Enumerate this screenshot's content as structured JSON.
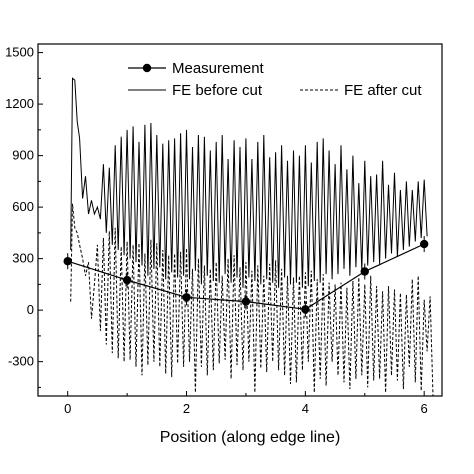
{
  "chart_data": {
    "type": "line",
    "title": "",
    "xlabel": "Position (along edge line)",
    "ylabel": "",
    "xlim": [
      -0.5,
      6.3
    ],
    "ylim": [
      -500,
      1550
    ],
    "x_ticks": [
      "0",
      "2",
      "4",
      "6"
    ],
    "y_ticks": [
      "-300",
      "0",
      "300",
      "600",
      "900",
      "1200",
      "1500"
    ],
    "x_tick_values": [
      0,
      2,
      4,
      6
    ],
    "y_tick_values": [
      -300,
      0,
      300,
      600,
      900,
      1200,
      1500
    ],
    "grid": false,
    "legend": "top-center",
    "series": [
      {
        "name": "Measurement",
        "style": "line-with-filled-circles",
        "color": "#000000",
        "x": [
          0,
          1,
          2,
          3,
          4,
          5,
          6
        ],
        "y": [
          285,
          175,
          75,
          50,
          5,
          225,
          385
        ]
      },
      {
        "name": "FE before cut",
        "style": "solid",
        "color": "#000000",
        "x": [
          0.05,
          0.08,
          0.12,
          0.16,
          0.2,
          0.25,
          0.3,
          0.35,
          0.4,
          0.45,
          0.5,
          0.55,
          0.6,
          0.65,
          0.7,
          0.75,
          0.8,
          0.85,
          0.9,
          0.95,
          1.0,
          1.05,
          1.1,
          1.15,
          1.2,
          1.25,
          1.3,
          1.35,
          1.4,
          1.45,
          1.5,
          1.55,
          1.6,
          1.65,
          1.7,
          1.75,
          1.8,
          1.85,
          1.9,
          1.95,
          2.0,
          2.05,
          2.1,
          2.15,
          2.2,
          2.25,
          2.3,
          2.35,
          2.4,
          2.45,
          2.5,
          2.55,
          2.6,
          2.65,
          2.7,
          2.75,
          2.8,
          2.85,
          2.9,
          2.95,
          3.0,
          3.05,
          3.1,
          3.15,
          3.2,
          3.25,
          3.3,
          3.35,
          3.4,
          3.45,
          3.5,
          3.55,
          3.6,
          3.65,
          3.7,
          3.75,
          3.8,
          3.85,
          3.9,
          3.95,
          4.0,
          4.05,
          4.1,
          4.15,
          4.2,
          4.25,
          4.3,
          4.35,
          4.4,
          4.45,
          4.5,
          4.55,
          4.6,
          4.65,
          4.7,
          4.75,
          4.8,
          4.85,
          4.9,
          4.95,
          5.0,
          5.05,
          5.1,
          5.15,
          5.2,
          5.25,
          5.3,
          5.35,
          5.4,
          5.45,
          5.5,
          5.55,
          5.6,
          5.65,
          5.7,
          5.75,
          5.8,
          5.85,
          5.9,
          5.95,
          6.0,
          6.05
        ],
        "y": [
          350,
          1350,
          1340,
          1100,
          1000,
          650,
          780,
          560,
          640,
          560,
          600,
          530,
          850,
          450,
          830,
          380,
          960,
          350,
          1010,
          320,
          1050,
          300,
          1070,
          280,
          980,
          260,
          1080,
          200,
          1090,
          240,
          1020,
          250,
          970,
          180,
          990,
          220,
          1000,
          190,
          1030,
          200,
          1050,
          180,
          950,
          230,
          1020,
          150,
          1010,
          200,
          930,
          170,
          980,
          160,
          1020,
          210,
          880,
          160,
          990,
          190,
          950,
          130,
          1000,
          190,
          880,
          170,
          980,
          150,
          1020,
          180,
          890,
          160,
          920,
          130,
          960,
          190,
          870,
          150,
          930,
          160,
          900,
          130,
          960,
          140,
          860,
          170,
          980,
          160,
          1000,
          210,
          930,
          180,
          850,
          210,
          960,
          240,
          820,
          200,
          900,
          250,
          740,
          230,
          870,
          260,
          780,
          280,
          790,
          270,
          870,
          300,
          730,
          330,
          800,
          310,
          700,
          350,
          750,
          370,
          700,
          400,
          750,
          420,
          760,
          430
        ]
      },
      {
        "name": "FE after cut",
        "style": "dashed",
        "color": "#000000",
        "x": [
          0.05,
          0.08,
          0.12,
          0.16,
          0.2,
          0.25,
          0.3,
          0.35,
          0.4,
          0.45,
          0.5,
          0.55,
          0.6,
          0.65,
          0.7,
          0.75,
          0.8,
          0.85,
          0.9,
          0.95,
          1.0,
          1.05,
          1.1,
          1.15,
          1.2,
          1.25,
          1.3,
          1.35,
          1.4,
          1.45,
          1.5,
          1.55,
          1.6,
          1.65,
          1.7,
          1.75,
          1.8,
          1.85,
          1.9,
          1.95,
          2.0,
          2.05,
          2.1,
          2.15,
          2.2,
          2.25,
          2.3,
          2.35,
          2.4,
          2.45,
          2.5,
          2.55,
          2.6,
          2.65,
          2.7,
          2.75,
          2.8,
          2.85,
          2.9,
          2.95,
          3.0,
          3.05,
          3.1,
          3.15,
          3.2,
          3.25,
          3.3,
          3.35,
          3.4,
          3.45,
          3.5,
          3.55,
          3.6,
          3.65,
          3.7,
          3.75,
          3.8,
          3.85,
          3.9,
          3.95,
          4.0,
          4.05,
          4.1,
          4.15,
          4.2,
          4.25,
          4.3,
          4.35,
          4.4,
          4.45,
          4.5,
          4.55,
          4.6,
          4.65,
          4.7,
          4.75,
          4.8,
          4.85,
          4.9,
          4.95,
          5.0,
          5.05,
          5.1,
          5.15,
          5.2,
          5.25,
          5.3,
          5.35,
          5.4,
          5.45,
          5.5,
          5.55,
          5.6,
          5.65,
          5.7,
          5.75,
          5.8,
          5.85,
          5.9,
          5.95,
          6.0,
          6.05,
          6.1,
          6.15
        ],
        "y": [
          50,
          620,
          480,
          450,
          380,
          300,
          200,
          280,
          -50,
          150,
          380,
          -120,
          420,
          -200,
          460,
          -250,
          480,
          -280,
          370,
          -300,
          400,
          -290,
          380,
          -330,
          390,
          -380,
          330,
          -320,
          410,
          -300,
          390,
          -330,
          350,
          -370,
          320,
          -390,
          330,
          -310,
          340,
          -330,
          360,
          -300,
          240,
          -480,
          300,
          -330,
          260,
          -380,
          240,
          -350,
          280,
          -310,
          200,
          -290,
          300,
          -400,
          320,
          -320,
          250,
          -350,
          280,
          -300,
          230,
          -480,
          260,
          -340,
          200,
          -360,
          270,
          -300,
          290,
          -350,
          240,
          -380,
          200,
          -430,
          190,
          -420,
          200,
          -350,
          220,
          -300,
          230,
          -480,
          180,
          -400,
          210,
          -440,
          160,
          -300,
          150,
          -380,
          160,
          -420,
          130,
          -460,
          170,
          -400,
          190,
          -380,
          150,
          -450,
          200,
          -410,
          140,
          -400,
          110,
          -480,
          140,
          -380,
          120,
          -410,
          100,
          -460,
          90,
          -330,
          180,
          -420,
          200,
          -470,
          60,
          -240,
          80,
          -520
        ]
      }
    ]
  }
}
